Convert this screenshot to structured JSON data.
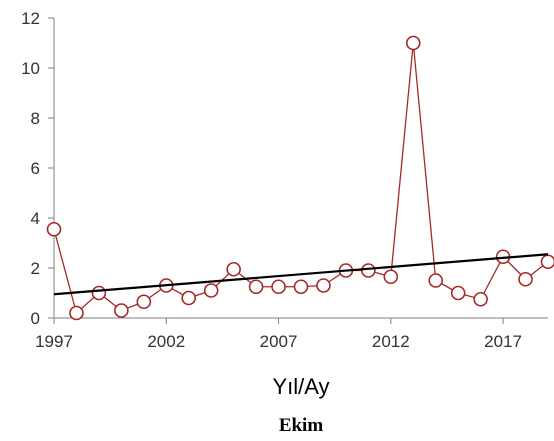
{
  "chart_data": {
    "type": "line",
    "xlabel": "Yıl/Ay",
    "subtitle": "Ekim",
    "xlim": [
      1997,
      2019
    ],
    "ylim": [
      0,
      12
    ],
    "x_ticks": [
      "1997",
      "2002",
      "2007",
      "2012",
      "2017"
    ],
    "y_ticks": [
      "0",
      "2",
      "4",
      "6",
      "8",
      "10",
      "12"
    ],
    "grid": false,
    "legend": "none",
    "series": [
      {
        "x": [
          1997,
          1998,
          1999,
          2000,
          2001,
          2002,
          2003,
          2004,
          2005,
          2006,
          2007,
          2008,
          2009,
          2010,
          2011,
          2012,
          2013,
          2014,
          2015,
          2016,
          2017,
          2018,
          2019
        ],
        "values": [
          3.55,
          0.2,
          1.0,
          0.3,
          0.65,
          1.3,
          0.8,
          1.1,
          1.95,
          1.25,
          1.25,
          1.25,
          1.3,
          1.9,
          1.9,
          1.65,
          11.0,
          1.5,
          1.0,
          0.75,
          2.45,
          1.55,
          2.25
        ],
        "color": "#a52a2a",
        "marker": "open-circle"
      }
    ],
    "trendline": {
      "y_start": 0.95,
      "y_end": 2.55,
      "color": "#000000"
    }
  }
}
